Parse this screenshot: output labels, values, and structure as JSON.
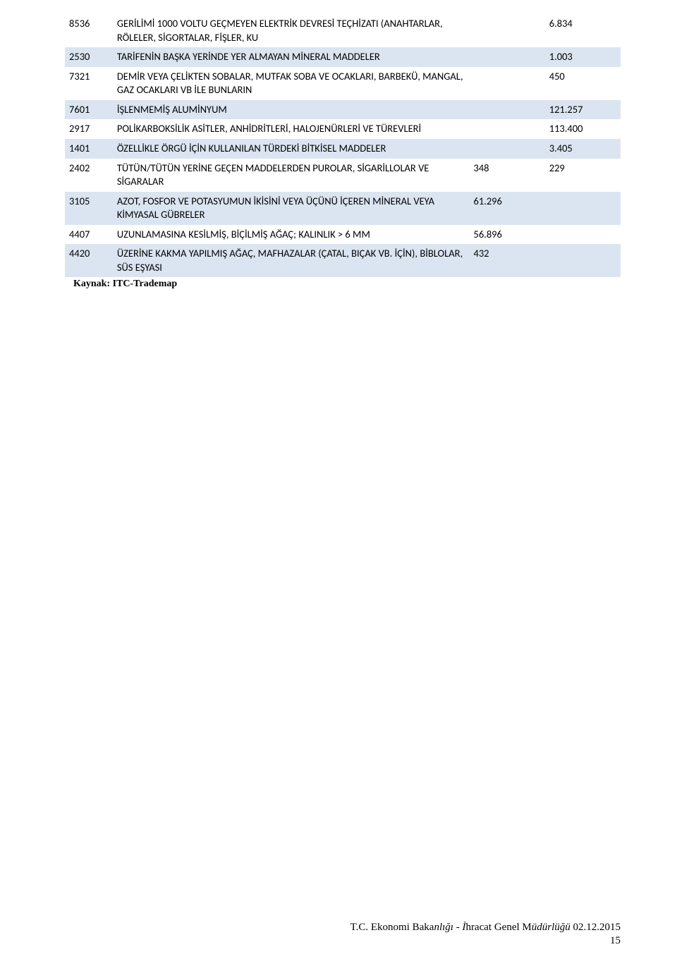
{
  "table": {
    "row_background_blue": "#dbe5f1",
    "row_background_white": "#ffffff",
    "font_size_pt": 11,
    "rows": [
      {
        "code": "8536",
        "desc": "GERİLİMİ 1000 VOLTU GEÇMEYEN ELEKTRİK DEVRESİ TEÇHİZATI (ANAHTARLAR, RÖLELER, SİGORTALAR, FİŞLER, KU",
        "v1": "",
        "v2": "6.834",
        "shade": "white"
      },
      {
        "code": "2530",
        "desc": "TARİFENİN BAŞKA YERİNDE YER ALMAYAN MİNERAL MADDELER",
        "v1": "",
        "v2": "1.003",
        "shade": "blue"
      },
      {
        "code": "7321",
        "desc": "DEMİR VEYA ÇELİKTEN SOBALAR, MUTFAK SOBA VE OCAKLARI, BARBEKÜ, MANGAL, GAZ OCAKLARI VB İLE BUNLARIN",
        "v1": "",
        "v2": "450",
        "shade": "white"
      },
      {
        "code": "7601",
        "desc": "İŞLENMEMİŞ ALUMİNYUM",
        "v1": "",
        "v2": "121.257",
        "shade": "blue"
      },
      {
        "code": "2917",
        "desc": "POLİKARBOKSİLİK ASİTLER, ANHİDRİTLERİ, HALOJENÜRLERİ VE TÜREVLERİ",
        "v1": "",
        "v2": "113.400",
        "shade": "white"
      },
      {
        "code": "1401",
        "desc": "ÖZELLİKLE ÖRGÜ İÇİN KULLANILAN TÜRDEKİ BİTKİSEL MADDELER",
        "v1": "",
        "v2": "3.405",
        "shade": "blue"
      },
      {
        "code": "2402",
        "desc": "TÜTÜN/TÜTÜN YERİNE GEÇEN MADDELERDEN PUROLAR, SİGARİLLOLAR VE SİGARALAR",
        "v1": "348",
        "v2": "229",
        "shade": "white"
      },
      {
        "code": "3105",
        "desc": "AZOT, FOSFOR VE POTASYUMUN İKİSİNİ VEYA ÜÇÜNÜ İÇEREN MİNERAL VEYA KİMYASAL GÜBRELER",
        "v1": "61.296",
        "v2": "",
        "shade": "blue"
      },
      {
        "code": "4407",
        "desc": "UZUNLAMASINA KESİLMİŞ, BİÇİLMİŞ AĞAÇ; KALINLIK > 6 MM",
        "v1": "56.896",
        "v2": "",
        "shade": "white"
      },
      {
        "code": "4420",
        "desc": "ÜZERİNE KAKMA YAPILMIŞ AĞAÇ, MAFHAZALAR (ÇATAL, BIÇAK VB. İÇİN), BİBLOLAR, SÜS EŞYASI",
        "v1": "432",
        "v2": "",
        "shade": "blue"
      }
    ]
  },
  "source_label": "Kaynak: ITC-Trademap",
  "footer": {
    "line_prefix": "T.C. Ekonomi Baka",
    "line_italic1": "nlığı - İ",
    "line_mid": "hracat Genel M",
    "line_italic2": "üdürlüğü ",
    "line_suffix": "02.12.2015",
    "page_number": "15"
  }
}
